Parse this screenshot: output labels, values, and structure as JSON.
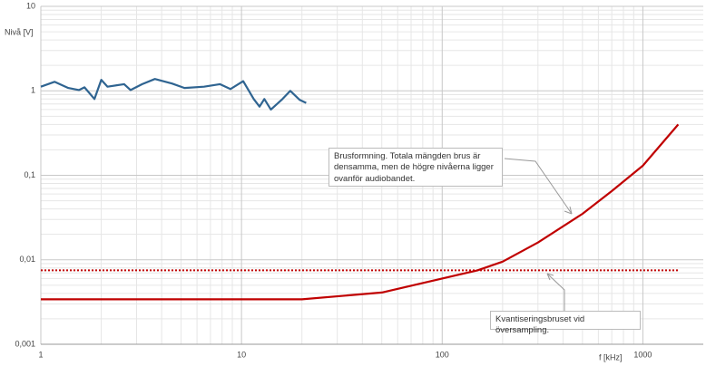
{
  "chart_data": {
    "type": "line",
    "y_label": "Nivå [V]",
    "x_label": "f [kHz]",
    "xscale": "log",
    "yscale": "log",
    "grid": true,
    "minor_grid": true,
    "xlim": [
      1,
      2000
    ],
    "ylim": [
      0.001,
      10
    ],
    "xticks": [
      1,
      10,
      100,
      1000
    ],
    "yticks": [
      {
        "value": 0.001,
        "label": "0,001"
      },
      {
        "value": 0.01,
        "label": "0,01"
      },
      {
        "value": 0.1,
        "label": "0,1"
      },
      1,
      10
    ],
    "series": [
      {
        "color": "#2f6491",
        "line_style": "solid",
        "x": [
          1,
          1.17,
          1.37,
          1.55,
          1.65,
          1.85,
          2.0,
          2.15,
          2.6,
          2.8,
          3.2,
          3.7,
          4.5,
          5.2,
          6.5,
          7.8,
          8.8,
          10.2,
          11.5,
          12.3,
          13,
          14,
          16,
          17.5,
          19.5,
          21
        ],
        "values": [
          1.12,
          1.28,
          1.08,
          1.02,
          1.1,
          0.8,
          1.35,
          1.12,
          1.2,
          1.02,
          1.2,
          1.38,
          1.22,
          1.08,
          1.12,
          1.2,
          1.05,
          1.3,
          0.8,
          0.65,
          0.8,
          0.6,
          0.8,
          1.0,
          0.78,
          0.72
        ]
      },
      {
        "color": "#c00000",
        "line_style": "solid",
        "x": [
          1,
          20,
          50,
          100,
          150,
          200,
          300,
          500,
          700,
          1000,
          1500
        ],
        "values": [
          0.0034,
          0.0034,
          0.0041,
          0.006,
          0.0075,
          0.0095,
          0.016,
          0.035,
          0.065,
          0.13,
          0.4
        ]
      },
      {
        "color": "#c00000",
        "line_style": "dotted",
        "x": [
          1,
          1500
        ],
        "values": [
          0.0075,
          0.0075
        ]
      }
    ],
    "annotations": [
      {
        "text": "Brusformning. Totala mängden brus är densamma, men de högre nivåerna ligger ovanför audiobandet."
      },
      {
        "text": "Kvantiseringsbruset vid översampling."
      }
    ]
  }
}
